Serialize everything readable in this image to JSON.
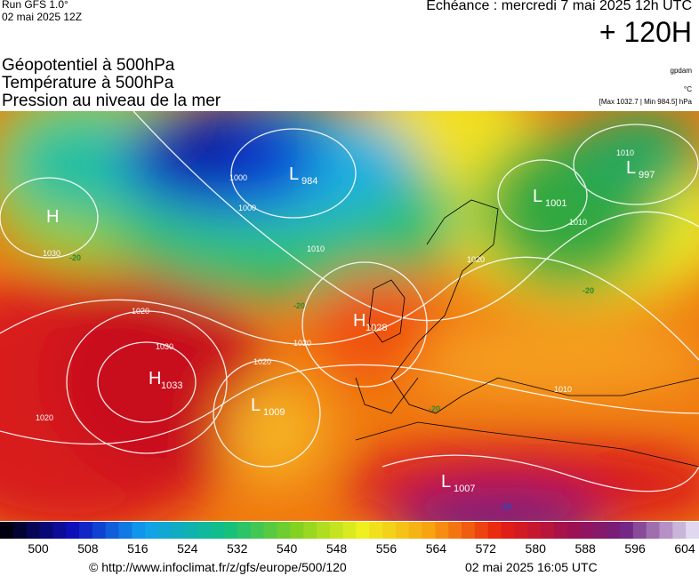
{
  "header": {
    "run": "Run GFS 1.0°",
    "run_date": "02 mai 2025 12Z",
    "echeance": "Echéance : mercredi 7 mai 2025 12h UTC",
    "lead": "+ 120H",
    "fields": [
      "Géopotentiel à 500hPa",
      "Température à 500hPa",
      "Pression au niveau de la mer"
    ],
    "units": {
      "geopotential": "gpdam",
      "temperature": "°C",
      "pressure": "[Max 1032.7 | Min 984.5] hPa"
    }
  },
  "map": {
    "centers": [
      {
        "letter": "H"
      },
      {
        "letter": "L",
        "value": 984
      },
      {
        "letter": "L",
        "value": 1001
      },
      {
        "letter": "L",
        "value": 997
      },
      {
        "letter": "H",
        "value": 1028
      },
      {
        "letter": "H",
        "value": 1033
      },
      {
        "letter": "L",
        "value": 1009
      },
      {
        "letter": "L",
        "value": 1007
      }
    ],
    "isobar_labels": [
      1000,
      1000,
      1010,
      1030,
      1020,
      1030,
      1020,
      1020,
      1020,
      1010,
      1010,
      1020,
      1010
    ],
    "temperature_labels": [
      -20,
      -20,
      -20,
      -20,
      -10
    ]
  },
  "colorbar": {
    "labels": [
      500,
      508,
      516,
      524,
      532,
      540,
      548,
      556,
      564,
      572,
      580,
      588,
      596,
      604
    ]
  },
  "footer": {
    "url": "© http://www.infoclimat.fr/z/gfs/europe/500/120",
    "generated": "02 mai 2025 16:05 UTC"
  }
}
